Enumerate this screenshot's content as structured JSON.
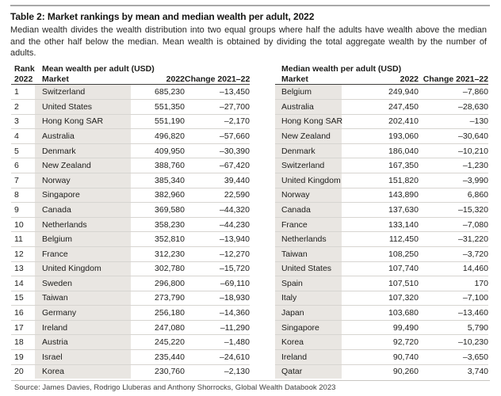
{
  "header": {
    "title": "Table 2: Market rankings by mean and median wealth per adult, 2022",
    "subtitle": "Median wealth divides the wealth distribution into two equal groups where half the adults have wealth above the median and the other half below the median. Mean wealth is obtained by dividing the total aggregate wealth by the number of adults."
  },
  "mean_table": {
    "rank_header": "Rank",
    "rank_subheader": "2022",
    "group_header": "Mean wealth per adult (USD)",
    "columns": [
      "Market",
      "2022",
      "Change 2021–22"
    ],
    "rows": [
      {
        "rank": "1",
        "market": "Switzerland",
        "value": "685,230",
        "change": "–13,450"
      },
      {
        "rank": "2",
        "market": "United States",
        "value": "551,350",
        "change": "–27,700"
      },
      {
        "rank": "3",
        "market": "Hong Kong SAR",
        "value": "551,190",
        "change": "–2,170"
      },
      {
        "rank": "4",
        "market": "Australia",
        "value": "496,820",
        "change": "–57,660"
      },
      {
        "rank": "5",
        "market": "Denmark",
        "value": "409,950",
        "change": "–30,390"
      },
      {
        "rank": "6",
        "market": "New Zealand",
        "value": "388,760",
        "change": "–67,420"
      },
      {
        "rank": "7",
        "market": "Norway",
        "value": "385,340",
        "change": "39,440"
      },
      {
        "rank": "8",
        "market": "Singapore",
        "value": "382,960",
        "change": "22,590"
      },
      {
        "rank": "9",
        "market": "Canada",
        "value": "369,580",
        "change": "–44,320"
      },
      {
        "rank": "10",
        "market": "Netherlands",
        "value": "358,230",
        "change": "–44,230"
      },
      {
        "rank": "11",
        "market": "Belgium",
        "value": "352,810",
        "change": "–13,940"
      },
      {
        "rank": "12",
        "market": "France",
        "value": "312,230",
        "change": "–12,270"
      },
      {
        "rank": "13",
        "market": "United Kingdom",
        "value": "302,780",
        "change": "–15,720"
      },
      {
        "rank": "14",
        "market": "Sweden",
        "value": "296,800",
        "change": "–69,110"
      },
      {
        "rank": "15",
        "market": "Taiwan",
        "value": "273,790",
        "change": "–18,930"
      },
      {
        "rank": "16",
        "market": "Germany",
        "value": "256,180",
        "change": "–14,360"
      },
      {
        "rank": "17",
        "market": "Ireland",
        "value": "247,080",
        "change": "–11,290"
      },
      {
        "rank": "18",
        "market": "Austria",
        "value": "245,220",
        "change": "–1,480"
      },
      {
        "rank": "19",
        "market": "Israel",
        "value": "235,440",
        "change": "–24,610"
      },
      {
        "rank": "20",
        "market": "Korea",
        "value": "230,760",
        "change": "–2,130"
      }
    ]
  },
  "median_table": {
    "group_header": "Median wealth per adult (USD)",
    "columns": [
      "Market",
      "2022",
      "Change 2021–22"
    ],
    "rows": [
      {
        "market": "Belgium",
        "value": "249,940",
        "change": "–7,860"
      },
      {
        "market": "Australia",
        "value": "247,450",
        "change": "–28,630"
      },
      {
        "market": "Hong Kong SAR",
        "value": "202,410",
        "change": "–130"
      },
      {
        "market": "New Zealand",
        "value": "193,060",
        "change": "–30,640"
      },
      {
        "market": "Denmark",
        "value": "186,040",
        "change": "–10,210"
      },
      {
        "market": "Switzerland",
        "value": "167,350",
        "change": "–1,230"
      },
      {
        "market": "United Kingdom",
        "value": "151,820",
        "change": "–3,990"
      },
      {
        "market": "Norway",
        "value": "143,890",
        "change": "6,860"
      },
      {
        "market": "Canada",
        "value": "137,630",
        "change": "–15,320"
      },
      {
        "market": "France",
        "value": "133,140",
        "change": "–7,080"
      },
      {
        "market": "Netherlands",
        "value": "112,450",
        "change": "–31,220"
      },
      {
        "market": "Taiwan",
        "value": "108,250",
        "change": "–3,720"
      },
      {
        "market": "United States",
        "value": "107,740",
        "change": "14,460"
      },
      {
        "market": "Spain",
        "value": "107,510",
        "change": "170"
      },
      {
        "market": "Italy",
        "value": "107,320",
        "change": "–7,100"
      },
      {
        "market": "Japan",
        "value": "103,680",
        "change": "–13,460"
      },
      {
        "market": "Singapore",
        "value": "99,490",
        "change": "5,790"
      },
      {
        "market": "Korea",
        "value": "92,720",
        "change": "–10,230"
      },
      {
        "market": "Ireland",
        "value": "90,740",
        "change": "–3,650"
      },
      {
        "market": "Qatar",
        "value": "90,260",
        "change": "3,740"
      }
    ]
  },
  "source": "Source: James Davies, Rodrigo Lluberas and Anthony Shorrocks, Global Wealth Databook 2023",
  "colors": {
    "market_cell_bg": "#e9e6e2",
    "row_divider": "#d7d5d1",
    "header_rule": "#403f3d",
    "top_rule": "#a8a8a8",
    "bottom_rule": "#c8c6c2",
    "text": "#1d1d1b"
  }
}
